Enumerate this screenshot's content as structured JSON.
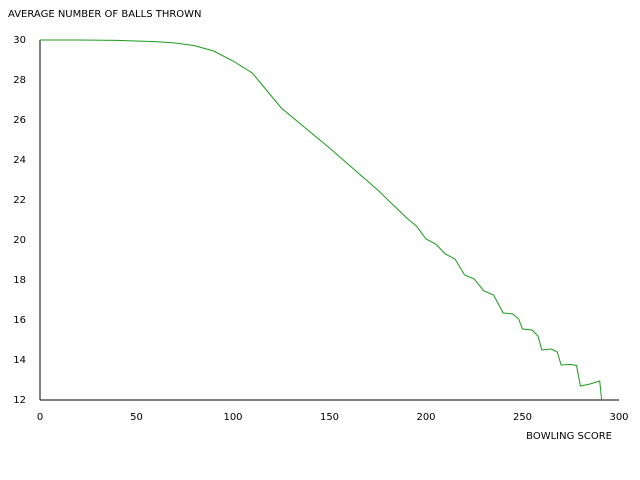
{
  "chart_data": {
    "type": "line",
    "title": "AVERAGE NUMBER OF BALLS THROWN",
    "x_label": "BOWLING SCORE",
    "color": "#1a9a1a",
    "x": [
      0,
      20,
      40,
      60,
      70,
      80,
      90,
      100,
      110,
      125,
      150,
      175,
      190,
      195,
      200,
      205,
      210,
      215,
      220,
      225,
      230,
      235,
      240,
      245,
      248,
      250,
      255,
      258,
      260,
      265,
      268,
      270,
      275,
      278,
      280,
      285,
      290,
      291
    ],
    "values": [
      30,
      30,
      29.98,
      29.92,
      29.85,
      29.72,
      29.45,
      28.95,
      28.35,
      26.6,
      24.6,
      22.5,
      21.1,
      20.7,
      20.05,
      19.8,
      19.3,
      19.05,
      18.25,
      18.05,
      17.45,
      17.25,
      16.35,
      16.3,
      16.05,
      15.55,
      15.5,
      15.2,
      14.5,
      14.55,
      14.4,
      13.75,
      13.78,
      13.72,
      12.7,
      12.8,
      12.95,
      12
    ],
    "xlim": [
      0,
      300
    ],
    "xticks": [
      0,
      50,
      100,
      150,
      200,
      250,
      300
    ],
    "ylim": [
      12,
      30
    ],
    "yticks": [
      12,
      14,
      16,
      18,
      20,
      22,
      24,
      26,
      28,
      30
    ]
  }
}
